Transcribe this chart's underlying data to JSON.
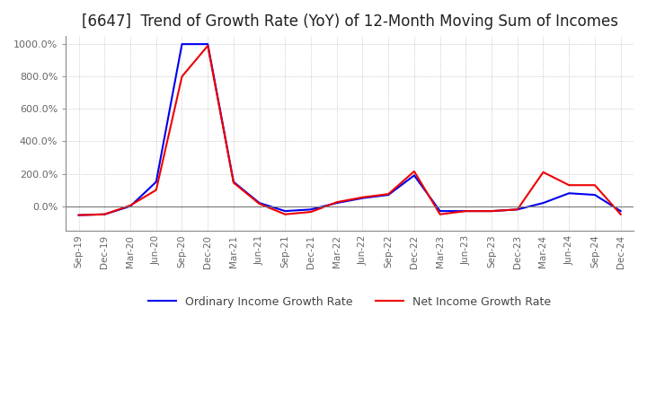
{
  "title": "[6647]  Trend of Growth Rate (YoY) of 12-Month Moving Sum of Incomes",
  "title_fontsize": 12,
  "background_color": "#ffffff",
  "grid_color": "#aaaaaa",
  "ordinary_color": "#0000ee",
  "net_color": "#ee0000",
  "legend_labels": [
    "Ordinary Income Growth Rate",
    "Net Income Growth Rate"
  ],
  "x_labels": [
    "Sep-19",
    "Dec-19",
    "Mar-20",
    "Jun-20",
    "Sep-20",
    "Dec-20",
    "Mar-21",
    "Jun-21",
    "Sep-21",
    "Dec-21",
    "Mar-22",
    "Jun-22",
    "Sep-22",
    "Dec-22",
    "Mar-23",
    "Jun-23",
    "Sep-23",
    "Dec-23",
    "Mar-24",
    "Jun-24",
    "Sep-24",
    "Dec-24"
  ],
  "ylim": [
    -150,
    1050
  ],
  "yticks": [
    0,
    200,
    400,
    600,
    800,
    1000
  ],
  "ordinary_income_growth": [
    -55,
    -50,
    0,
    150,
    1000,
    1000,
    150,
    20,
    -30,
    -20,
    20,
    50,
    70,
    190,
    -30,
    -30,
    -30,
    -20,
    20,
    80,
    70,
    -30
  ],
  "net_income_growth": [
    -55,
    -50,
    5,
    100,
    800,
    990,
    145,
    15,
    -50,
    -35,
    25,
    55,
    75,
    215,
    -50,
    -30,
    -30,
    -20,
    210,
    130,
    130,
    -50
  ]
}
